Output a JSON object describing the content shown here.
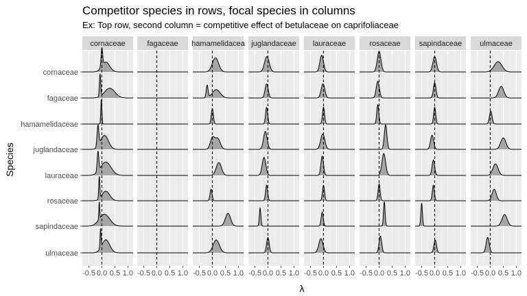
{
  "title": "Competitor species in rows, focal species in columns",
  "subtitle": "Ex: Top row, second column = competitive effect of betulaceae on caprifoliaceae",
  "chart_data": {
    "type": "area",
    "title": "Competitor species in rows, focal species in columns",
    "subtitle": "Ex: Top row, second column = competitive effect of betulaceae on caprifoliaceae",
    "xlabel": "λ",
    "ylabel": "Species",
    "xlim": [
      -0.75,
      1.2
    ],
    "x_ticks": [
      -0.5,
      0.0,
      0.5,
      1.0
    ],
    "x_tick_labels": [
      "-0.5",
      "0.0",
      "0.5",
      "1.0"
    ],
    "reference_line_x": 0,
    "grid": true,
    "columns": [
      "cornaceae",
      "fagaceae",
      "hamamelidaceae",
      "juglandaceae",
      "lauraceae",
      "rosaceae",
      "sapindaceae",
      "ulmaceae"
    ],
    "column_labels": [
      "cornaceae",
      "fagaceae",
      "hamamelidacea",
      "juglandaceae",
      "lauraceae",
      "rosaceae",
      "sapindaceae",
      "ulmaceae"
    ],
    "rows": [
      "cornaceae",
      "fagaceae",
      "hamamelidaceae",
      "juglandaceae",
      "lauraceae",
      "rosaceae",
      "sapindaceae",
      "ulmaceae"
    ],
    "densities": [
      [
        {
          "modes": [
            {
              "m": 0.0,
              "s": 0.03,
              "w": 0.65
            },
            {
              "m": 0.15,
              "s": 0.15,
              "w": 0.35
            }
          ],
          "h": 0.95
        },
        null,
        {
          "modes": [
            {
              "m": 0.12,
              "s": 0.12,
              "w": 1
            }
          ],
          "h": 0.55
        },
        {
          "modes": [
            {
              "m": -0.04,
              "s": 0.09,
              "w": 1
            }
          ],
          "h": 0.6
        },
        {
          "modes": [
            {
              "m": -0.07,
              "s": 0.07,
              "w": 1
            }
          ],
          "h": 0.65
        },
        {
          "modes": [
            {
              "m": 0.0,
              "s": 0.07,
              "w": 1
            }
          ],
          "h": 0.8
        },
        {
          "modes": [
            {
              "m": 0.0,
              "s": 0.07,
              "w": 1
            }
          ],
          "h": 0.6
        },
        {
          "modes": [
            {
              "m": 0.3,
              "s": 0.15,
              "w": 1
            }
          ],
          "h": 0.4
        }
      ],
      [
        {
          "modes": [
            {
              "m": -0.07,
              "s": 0.025,
              "w": 0.7
            },
            {
              "m": 0.3,
              "s": 0.2,
              "w": 0.3
            }
          ],
          "h": 0.95
        },
        null,
        {
          "modes": [
            {
              "m": -0.2,
              "s": 0.035,
              "w": 0.6
            },
            {
              "m": 0.15,
              "s": 0.15,
              "w": 0.4
            }
          ],
          "h": 0.5
        },
        {
          "modes": [
            {
              "m": -0.05,
              "s": 0.06,
              "w": 1
            }
          ],
          "h": 0.55
        },
        {
          "modes": [
            {
              "m": -0.02,
              "s": 0.07,
              "w": 1
            }
          ],
          "h": 0.55
        },
        {
          "modes": [
            {
              "m": -0.05,
              "s": 0.06,
              "w": 1
            }
          ],
          "h": 0.65
        },
        {
          "modes": [
            {
              "m": 0.0,
              "s": 0.05,
              "w": 1
            }
          ],
          "h": 0.6
        },
        {
          "modes": [
            {
              "m": 0.42,
              "s": 0.1,
              "w": 1
            }
          ],
          "h": 0.45
        }
      ],
      [
        {
          "modes": [
            {
              "m": -0.02,
              "s": 0.02,
              "w": 1
            }
          ],
          "h": 0.95
        },
        null,
        {
          "modes": [
            {
              "m": 0.0,
              "s": 0.04,
              "w": 1
            }
          ],
          "h": 0.6
        },
        {
          "modes": [
            {
              "m": -0.05,
              "s": 0.04,
              "w": 1
            }
          ],
          "h": 0.65
        },
        {
          "modes": [
            {
              "m": 0.0,
              "s": 0.04,
              "w": 1
            }
          ],
          "h": 0.65
        },
        {
          "modes": [
            {
              "m": -0.05,
              "s": 0.04,
              "w": 1
            }
          ],
          "h": 0.75
        },
        {
          "modes": [
            {
              "m": 0.0,
              "s": 0.04,
              "w": 1
            }
          ],
          "h": 0.65
        },
        {
          "modes": [
            {
              "m": 0.02,
              "s": 0.05,
              "w": 1
            }
          ],
          "h": 0.5
        }
      ],
      [
        {
          "modes": [
            {
              "m": -0.15,
              "s": 0.035,
              "w": 0.6
            },
            {
              "m": 0.1,
              "s": 0.15,
              "w": 0.4
            }
          ],
          "h": 0.95
        },
        null,
        {
          "modes": [
            {
              "m": 0.0,
              "s": 0.08,
              "w": 0.5
            },
            {
              "m": 0.2,
              "s": 0.1,
              "w": 0.5
            }
          ],
          "h": 0.5
        },
        {
          "modes": [
            {
              "m": -0.1,
              "s": 0.07,
              "w": 1
            }
          ],
          "h": 0.7
        },
        {
          "modes": [
            {
              "m": -0.03,
              "s": 0.08,
              "w": 1
            }
          ],
          "h": 0.6
        },
        {
          "modes": [
            {
              "m": 0.25,
              "s": 0.05,
              "w": 1
            }
          ],
          "h": 0.95
        },
        {
          "modes": [
            {
              "m": -0.1,
              "s": 0.06,
              "w": 1
            }
          ],
          "h": 0.55
        },
        {
          "modes": [
            {
              "m": 0.5,
              "s": 0.1,
              "w": 1
            }
          ],
          "h": 0.45
        }
      ],
      [
        {
          "modes": [
            {
              "m": -0.15,
              "s": 0.03,
              "w": 0.6
            },
            {
              "m": 0.15,
              "s": 0.2,
              "w": 0.4
            }
          ],
          "h": 0.95
        },
        null,
        {
          "modes": [
            {
              "m": 0.25,
              "s": 0.1,
              "w": 1
            }
          ],
          "h": 0.5
        },
        {
          "modes": [
            {
              "m": -0.15,
              "s": 0.07,
              "w": 1
            }
          ],
          "h": 0.7
        },
        {
          "modes": [
            {
              "m": -0.05,
              "s": 0.05,
              "w": 1
            }
          ],
          "h": 0.75
        },
        {
          "modes": [
            {
              "m": 0.18,
              "s": 0.07,
              "w": 1
            }
          ],
          "h": 0.85
        },
        {
          "modes": [
            {
              "m": -0.05,
              "s": 0.05,
              "w": 1
            }
          ],
          "h": 0.6
        },
        {
          "modes": [
            {
              "m": 0.2,
              "s": 0.1,
              "w": 1
            }
          ],
          "h": 0.45
        }
      ],
      [
        {
          "modes": [
            {
              "m": -0.1,
              "s": 0.02,
              "w": 0.7
            },
            {
              "m": 0.15,
              "s": 0.15,
              "w": 0.3
            }
          ],
          "h": 0.95
        },
        null,
        {
          "modes": [
            {
              "m": -0.05,
              "s": 0.04,
              "w": 1
            }
          ],
          "h": 0.45
        },
        {
          "modes": [
            {
              "m": -0.05,
              "s": 0.04,
              "w": 1
            }
          ],
          "h": 0.6
        },
        {
          "modes": [
            {
              "m": 0.0,
              "s": 0.04,
              "w": 1
            }
          ],
          "h": 0.6
        },
        {
          "modes": [
            {
              "m": 0.0,
              "s": 0.04,
              "w": 1
            }
          ],
          "h": 0.65
        },
        {
          "modes": [
            {
              "m": -0.05,
              "s": 0.04,
              "w": 1
            }
          ],
          "h": 0.6
        },
        {
          "modes": [
            {
              "m": 0.15,
              "s": 0.08,
              "w": 1
            }
          ],
          "h": 0.45
        }
      ],
      [
        {
          "modes": [
            {
              "m": -0.1,
              "s": 0.015,
              "w": 0.6
            },
            {
              "m": 0.1,
              "s": 0.2,
              "w": 0.4
            }
          ],
          "h": 0.95
        },
        null,
        {
          "modes": [
            {
              "m": 0.6,
              "s": 0.1,
              "w": 1
            }
          ],
          "h": 0.5
        },
        {
          "modes": [
            {
              "m": -0.3,
              "s": 0.03,
              "w": 1
            }
          ],
          "h": 0.7
        },
        {
          "modes": [
            {
              "m": -0.05,
              "s": 0.04,
              "w": 1
            }
          ],
          "h": 0.55
        },
        {
          "modes": [
            {
              "m": 0.2,
              "s": 0.03,
              "w": 1
            }
          ],
          "h": 0.95
        },
        {
          "modes": [
            {
              "m": -0.5,
              "s": 0.03,
              "w": 1
            }
          ],
          "h": 0.9
        },
        {
          "modes": [
            {
              "m": 0.55,
              "s": 0.1,
              "w": 1
            }
          ],
          "h": 0.45
        }
      ],
      [
        {
          "modes": [
            {
              "m": -0.05,
              "s": 0.02,
              "w": 0.6
            },
            {
              "m": 0.15,
              "s": 0.15,
              "w": 0.4
            }
          ],
          "h": 0.95
        },
        null,
        {
          "modes": [
            {
              "m": 0.15,
              "s": 0.12,
              "w": 1
            }
          ],
          "h": 0.5
        },
        {
          "modes": [
            {
              "m": 0.0,
              "s": 0.05,
              "w": 1
            }
          ],
          "h": 0.6
        },
        {
          "modes": [
            {
              "m": -0.1,
              "s": 0.08,
              "w": 1
            }
          ],
          "h": 0.55
        },
        {
          "modes": [
            {
              "m": 0.05,
              "s": 0.05,
              "w": 1
            }
          ],
          "h": 0.65
        },
        {
          "modes": [
            {
              "m": 0.02,
              "s": 0.05,
              "w": 1
            }
          ],
          "h": 0.5
        },
        {
          "modes": [
            {
              "m": -0.1,
              "s": 0.06,
              "w": 1
            }
          ],
          "h": 0.6
        }
      ]
    ]
  }
}
